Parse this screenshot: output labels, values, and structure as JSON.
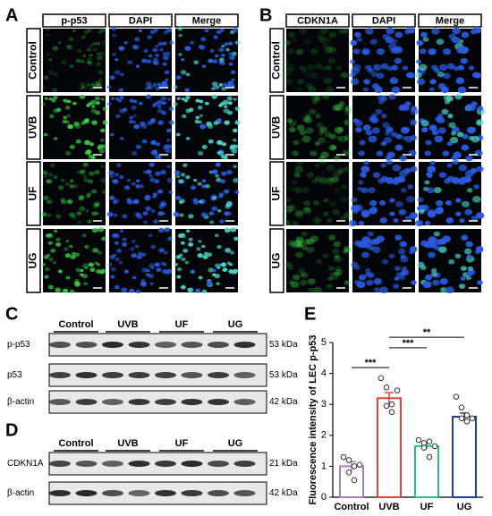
{
  "panels": {
    "A": {
      "label": "A",
      "columns": [
        "p-p53",
        "DAPI",
        "Merge"
      ],
      "rows": [
        "Control",
        "UVB",
        "UF",
        "UG"
      ]
    },
    "B": {
      "label": "B",
      "columns": [
        "CDKN1A",
        "DAPI",
        "Merge"
      ],
      "rows": [
        "Control",
        "UVB",
        "UF",
        "UG"
      ]
    },
    "C": {
      "label": "C",
      "groups": [
        "Control",
        "UVB",
        "UF",
        "UG"
      ],
      "blots": [
        {
          "name": "p-p53",
          "size": "53 kDa"
        },
        {
          "name": "p53",
          "size": "53 kDa"
        },
        {
          "name": "β-actin",
          "size": "42 kDa"
        }
      ]
    },
    "D": {
      "label": "D",
      "groups": [
        "Control",
        "UVB",
        "UF",
        "UG"
      ],
      "blots": [
        {
          "name": "CDKN1A",
          "size": "21 kDa"
        },
        {
          "name": "β-actin",
          "size": "42 kDa"
        }
      ]
    }
  },
  "chart_data": {
    "type": "bar",
    "panel_label": "E",
    "y_label": "Fluorescence intensity of LEC p-p53",
    "categories": [
      "Control",
      "UVB",
      "UF",
      "UG"
    ],
    "values": [
      1.0,
      3.2,
      1.65,
      2.6
    ],
    "errors": [
      0.15,
      0.18,
      0.1,
      0.12
    ],
    "colors": [
      "#a57fc4",
      "#e8403a",
      "#2dbb8a",
      "#1d3f9e"
    ],
    "points": [
      [
        1.3,
        1.2,
        1.0,
        0.8,
        0.55,
        1.05
      ],
      [
        3.85,
        3.55,
        3.0,
        2.95,
        2.75,
        3.45
      ],
      [
        1.85,
        1.75,
        1.8,
        1.6,
        1.3,
        1.65
      ],
      [
        3.25,
        2.9,
        2.65,
        2.55,
        2.45,
        2.55
      ]
    ],
    "ylim": [
      0,
      5
    ],
    "yticks": [
      0,
      1,
      2,
      3,
      4,
      5
    ],
    "annotations": [
      {
        "text": "***",
        "from": "Control",
        "to": "UVB",
        "y": 4.19
      },
      {
        "text": "***",
        "from": "UVB",
        "to": "UF",
        "y": 4.83
      },
      {
        "text": "**",
        "from": "UVB",
        "to": "UG",
        "y": 5.17
      }
    ]
  }
}
